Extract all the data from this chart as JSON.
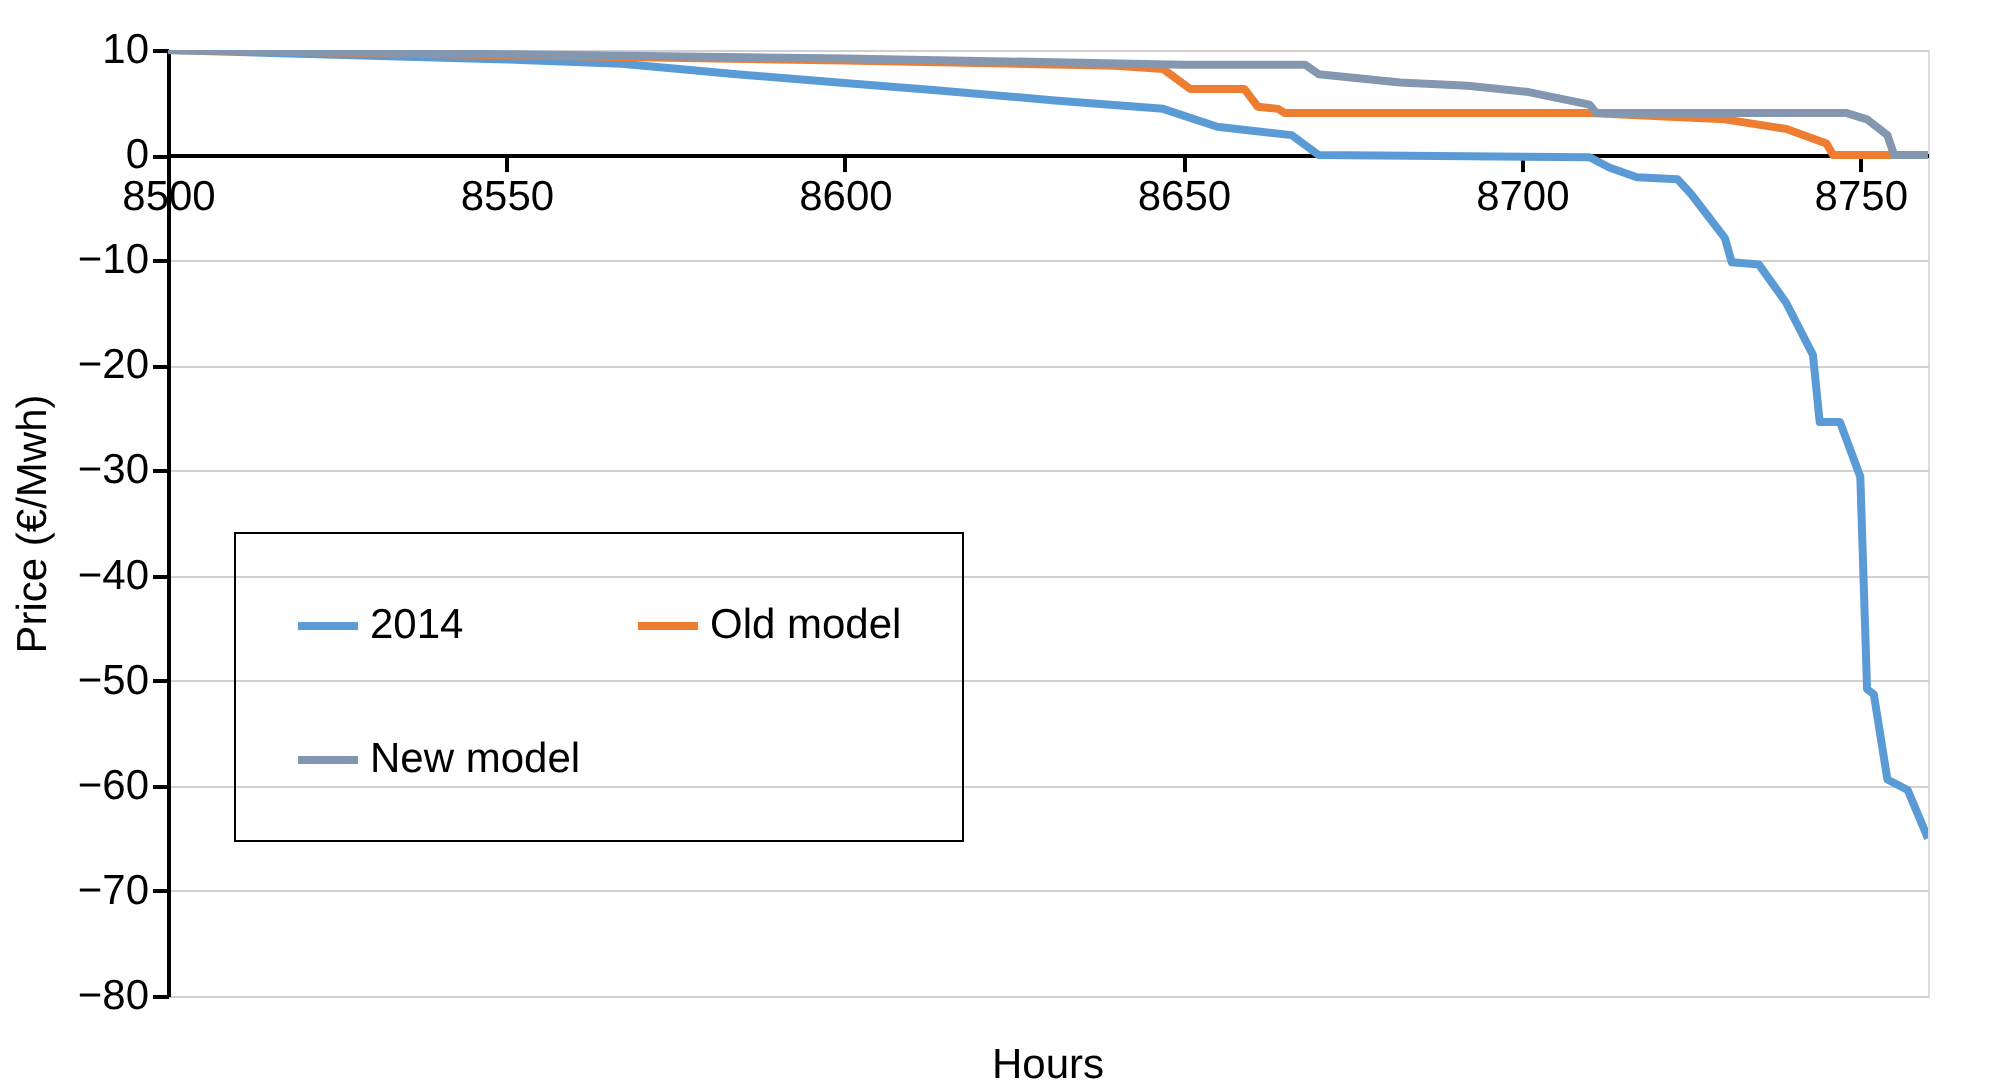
{
  "chart_data": {
    "type": "line",
    "xlabel": "Hours",
    "ylabel": "Price (€/Mwh)",
    "xlim": [
      8500,
      8760
    ],
    "xticks": [
      8500,
      8550,
      8600,
      8650,
      8700,
      8750
    ],
    "ylim": [
      -80,
      10
    ],
    "yticks": [
      -80,
      -70,
      -60,
      -50,
      -40,
      -30,
      -20,
      -10,
      0,
      10
    ],
    "grid": "y",
    "legend": "bottom left",
    "marker": "none",
    "line_style": "solid",
    "series": [
      {
        "name": "2014",
        "color": "#5b9bd5",
        "x": [
          8500,
          8550,
          8567,
          8584,
          8599,
          8613,
          8631,
          8647,
          8655,
          8666,
          8670,
          8710,
          8713,
          8717,
          8723,
          8725,
          8730,
          8731,
          8735,
          8739,
          8743,
          8744,
          8747,
          8750,
          8751,
          8752,
          8754,
          8757,
          8760
        ],
        "values": [
          10,
          9.1,
          8.7,
          7.7,
          6.9,
          6.2,
          5.2,
          4.4,
          2.7,
          1.9,
          0,
          -0.2,
          -1.2,
          -2.1,
          -2.3,
          -3.7,
          -7.9,
          -10.2,
          -10.4,
          -14,
          -19,
          -25.4,
          -25.4,
          -30.6,
          -50.8,
          -51.3,
          -59.4,
          -60.4,
          -65
        ]
      },
      {
        "name": "Old model",
        "color": "#ed7d31",
        "x": [
          8500,
          8550,
          8600,
          8640,
          8647,
          8651,
          8659,
          8661,
          8664,
          8665,
          8710,
          8730,
          8739,
          8745,
          8746,
          8760
        ],
        "values": [
          10,
          9.5,
          9.0,
          8.5,
          8.2,
          6.3,
          6.3,
          4.6,
          4.4,
          4.0,
          4.0,
          3.4,
          2.5,
          1.1,
          0,
          0
        ]
      },
      {
        "name": "New model",
        "color": "#8497b0",
        "x": [
          8500,
          8550,
          8600,
          8650,
          8668,
          8670,
          8682,
          8692,
          8701,
          8710,
          8711,
          8748,
          8751,
          8754,
          8755,
          8760
        ],
        "values": [
          10,
          9.6,
          9.2,
          8.6,
          8.6,
          7.7,
          6.9,
          6.6,
          6.0,
          4.8,
          4.0,
          4.0,
          3.4,
          1.9,
          0,
          0
        ]
      }
    ]
  }
}
